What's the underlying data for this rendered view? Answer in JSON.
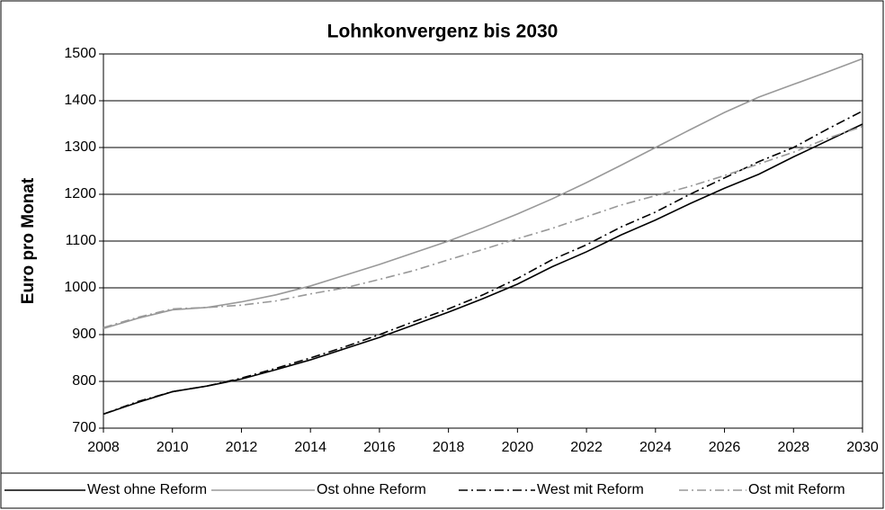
{
  "chart_data": {
    "type": "line",
    "title": "Lohnkonvergenz bis 2030",
    "y_label": "Euro pro Monat",
    "x": [
      2008,
      2009,
      2010,
      2011,
      2012,
      2013,
      2014,
      2015,
      2016,
      2017,
      2018,
      2019,
      2020,
      2021,
      2022,
      2023,
      2024,
      2025,
      2026,
      2027,
      2028,
      2029,
      2030
    ],
    "series": [
      {
        "name": "West ohne Reform",
        "color": "#000000",
        "style": "solid",
        "values": [
          730,
          755,
          778,
          790,
          805,
          825,
          846,
          870,
          894,
          921,
          948,
          977,
          1008,
          1045,
          1077,
          1113,
          1145,
          1180,
          1213,
          1243,
          1280,
          1315,
          1350
        ]
      },
      {
        "name": "Ost ohne Reform",
        "color": "#999999",
        "style": "solid",
        "values": [
          913,
          935,
          953,
          958,
          970,
          985,
          1004,
          1027,
          1050,
          1075,
          1100,
          1128,
          1158,
          1190,
          1225,
          1262,
          1300,
          1338,
          1375,
          1408,
          1435,
          1462,
          1490
        ]
      },
      {
        "name": "West mit Reform",
        "color": "#000000",
        "style": "dashdot",
        "values": [
          730,
          757,
          778,
          790,
          807,
          828,
          850,
          874,
          900,
          928,
          955,
          985,
          1020,
          1060,
          1092,
          1130,
          1162,
          1200,
          1235,
          1270,
          1300,
          1340,
          1378
        ]
      },
      {
        "name": "Ost mit Reform",
        "color": "#999999",
        "style": "dashdot",
        "values": [
          915,
          937,
          955,
          958,
          963,
          972,
          987,
          1000,
          1018,
          1037,
          1060,
          1082,
          1105,
          1127,
          1152,
          1177,
          1197,
          1217,
          1240,
          1265,
          1290,
          1320,
          1345
        ]
      }
    ],
    "xlim": [
      2008,
      2030
    ],
    "xticks": [
      2008,
      2010,
      2012,
      2014,
      2016,
      2018,
      2020,
      2022,
      2024,
      2026,
      2028,
      2030
    ],
    "ylim": [
      700,
      1500
    ],
    "yticks": [
      700,
      800,
      900,
      1000,
      1100,
      1200,
      1300,
      1400,
      1500
    ],
    "grid": true,
    "legend": "bottom"
  }
}
